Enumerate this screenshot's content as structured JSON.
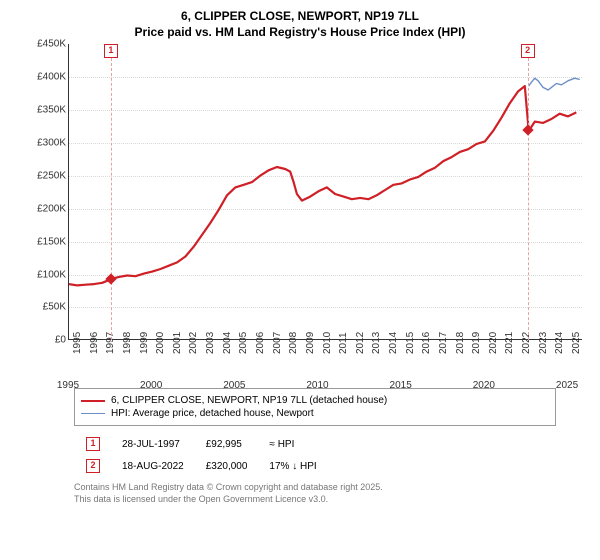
{
  "title_line1": "6, CLIPPER CLOSE, NEWPORT, NP19 7LL",
  "title_line2": "Price paid vs. HM Land Registry's House Price Index (HPI)",
  "chart": {
    "type": "line",
    "x_min": 1995,
    "x_max": 2025.9,
    "y_min": 0,
    "y_max": 450000,
    "y_ticks": [
      0,
      50000,
      100000,
      150000,
      200000,
      250000,
      300000,
      350000,
      400000,
      450000
    ],
    "y_tick_labels": [
      "£0",
      "£50K",
      "£100K",
      "£150K",
      "£200K",
      "£250K",
      "£300K",
      "£350K",
      "£400K",
      "£450K"
    ],
    "x_ticks": [
      1995,
      1996,
      1997,
      1998,
      1999,
      2000,
      2001,
      2002,
      2003,
      2004,
      2005,
      2006,
      2007,
      2008,
      2009,
      2010,
      2011,
      2012,
      2013,
      2014,
      2015,
      2016,
      2017,
      2018,
      2019,
      2020,
      2021,
      2022,
      2023,
      2024,
      2025
    ],
    "extra_x_ticks": [
      1995,
      2000,
      2005,
      2010,
      2015,
      2020,
      2025
    ],
    "grid_color": "#d9d9d9",
    "background_color": "#ffffff",
    "series": [
      {
        "name": "property",
        "color": "#cf2027",
        "width": 2.2,
        "data": [
          [
            1995,
            85000
          ],
          [
            1995.5,
            83000
          ],
          [
            1996,
            84000
          ],
          [
            1996.5,
            85000
          ],
          [
            1997,
            87000
          ],
          [
            1997.58,
            92995
          ],
          [
            1998,
            96000
          ],
          [
            1998.5,
            98000
          ],
          [
            1999,
            97000
          ],
          [
            1999.5,
            101000
          ],
          [
            2000,
            104000
          ],
          [
            2000.5,
            108000
          ],
          [
            2001,
            113000
          ],
          [
            2001.5,
            118000
          ],
          [
            2002,
            127000
          ],
          [
            2002.5,
            142000
          ],
          [
            2003,
            160000
          ],
          [
            2003.5,
            178000
          ],
          [
            2004,
            198000
          ],
          [
            2004.5,
            220000
          ],
          [
            2005,
            232000
          ],
          [
            2005.5,
            236000
          ],
          [
            2006,
            240000
          ],
          [
            2006.5,
            250000
          ],
          [
            2007,
            258000
          ],
          [
            2007.5,
            263000
          ],
          [
            2008,
            260000
          ],
          [
            2008.3,
            256000
          ],
          [
            2008.5,
            240000
          ],
          [
            2008.7,
            222000
          ],
          [
            2009,
            212000
          ],
          [
            2009.5,
            218000
          ],
          [
            2010,
            226000
          ],
          [
            2010.5,
            232000
          ],
          [
            2011,
            222000
          ],
          [
            2011.5,
            218000
          ],
          [
            2012,
            214000
          ],
          [
            2012.5,
            216000
          ],
          [
            2013,
            214000
          ],
          [
            2013.5,
            220000
          ],
          [
            2014,
            228000
          ],
          [
            2014.5,
            236000
          ],
          [
            2015,
            238000
          ],
          [
            2015.5,
            244000
          ],
          [
            2016,
            248000
          ],
          [
            2016.5,
            256000
          ],
          [
            2017,
            262000
          ],
          [
            2017.5,
            272000
          ],
          [
            2018,
            278000
          ],
          [
            2018.5,
            286000
          ],
          [
            2019,
            290000
          ],
          [
            2019.5,
            298000
          ],
          [
            2020,
            302000
          ],
          [
            2020.5,
            318000
          ],
          [
            2021,
            338000
          ],
          [
            2021.5,
            360000
          ],
          [
            2022,
            378000
          ],
          [
            2022.4,
            386000
          ],
          [
            2022.63,
            320000
          ],
          [
            2022.8,
            324000
          ],
          [
            2023,
            332000
          ],
          [
            2023.5,
            330000
          ],
          [
            2024,
            336000
          ],
          [
            2024.5,
            344000
          ],
          [
            2025,
            340000
          ],
          [
            2025.5,
            346000
          ]
        ]
      },
      {
        "name": "hpi",
        "color": "#6b8fc6",
        "width": 1.4,
        "data": [
          [
            2022.63,
            386000
          ],
          [
            2022.8,
            392000
          ],
          [
            2023,
            398000
          ],
          [
            2023.2,
            394000
          ],
          [
            2023.5,
            384000
          ],
          [
            2023.8,
            380000
          ],
          [
            2024,
            384000
          ],
          [
            2024.3,
            390000
          ],
          [
            2024.6,
            388000
          ],
          [
            2025,
            394000
          ],
          [
            2025.4,
            398000
          ],
          [
            2025.7,
            396000
          ]
        ]
      }
    ],
    "markers": [
      {
        "n": 1,
        "x": 1997.58,
        "y": 92995
      },
      {
        "n": 2,
        "x": 2022.63,
        "y": 320000
      }
    ]
  },
  "legend": {
    "row1": "6, CLIPPER CLOSE, NEWPORT, NP19 7LL (detached house)",
    "row2": "HPI: Average price, detached house, Newport"
  },
  "sales": [
    {
      "n": "1",
      "date": "28-JUL-1997",
      "price": "£92,995",
      "delta": "≈ HPI"
    },
    {
      "n": "2",
      "date": "18-AUG-2022",
      "price": "£320,000",
      "delta": "17% ↓ HPI"
    }
  ],
  "footer1": "Contains HM Land Registry data © Crown copyright and database right 2025.",
  "footer2": "This data is licensed under the Open Government Licence v3.0."
}
